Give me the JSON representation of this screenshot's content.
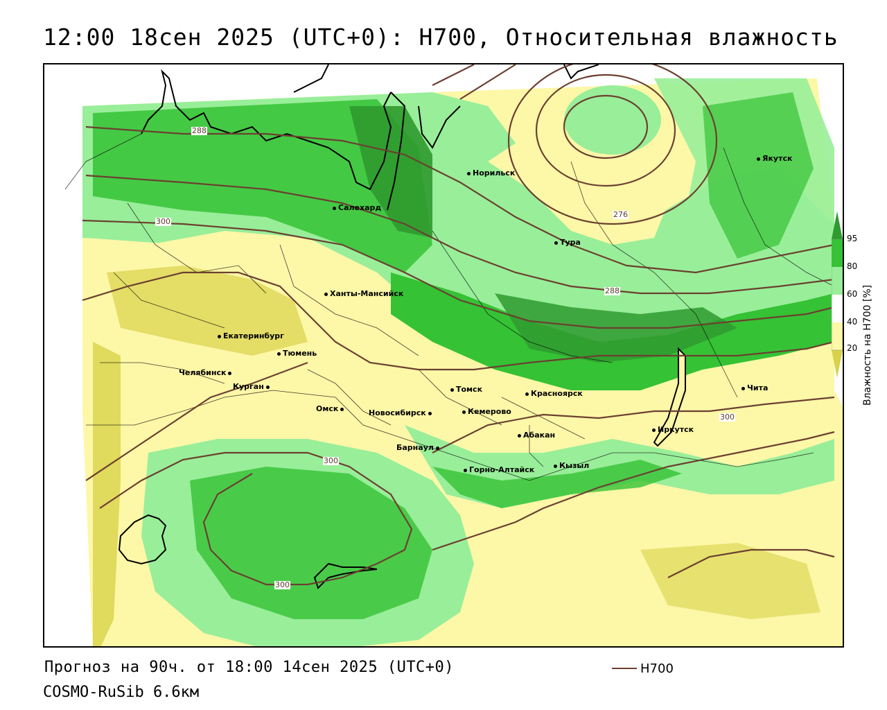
{
  "title": "12:00 18сен 2025 (UTC+0): H700, Относительная влажность",
  "footer": {
    "forecast": "Прогноз на 90ч. от 18:00 14сен 2025 (UTC+0)",
    "model": "COSMO-RuSib 6.6км",
    "legend_label": "H700"
  },
  "colorbar": {
    "title": "Влажность на H700 [%]",
    "ticks": [
      "95",
      "80",
      "60",
      "40",
      "20"
    ],
    "colors": [
      "#2f9a2f",
      "#35c235",
      "#99ee99",
      "#ffffff",
      "#fdf7a8",
      "#d8d24a"
    ]
  },
  "cities": [
    {
      "name": "Якутск"
    },
    {
      "name": "Норильск"
    },
    {
      "name": "Салехард"
    },
    {
      "name": "Тура"
    },
    {
      "name": "Ханты-Мансийск"
    },
    {
      "name": "Екатеринбург"
    },
    {
      "name": "Тюмень"
    },
    {
      "name": "Челябинск"
    },
    {
      "name": "Курган"
    },
    {
      "name": "Омск"
    },
    {
      "name": "Новосибирск"
    },
    {
      "name": "Томск"
    },
    {
      "name": "Кемерово"
    },
    {
      "name": "Красноярск"
    },
    {
      "name": "Абакан"
    },
    {
      "name": "Барнаул"
    },
    {
      "name": "Горно-Алтайск"
    },
    {
      "name": "Кызыл"
    },
    {
      "name": "Иркутск"
    },
    {
      "name": "Чита"
    }
  ],
  "contour_labels": [
    "288",
    "300",
    "276",
    "288",
    "300",
    "300",
    "300"
  ]
}
